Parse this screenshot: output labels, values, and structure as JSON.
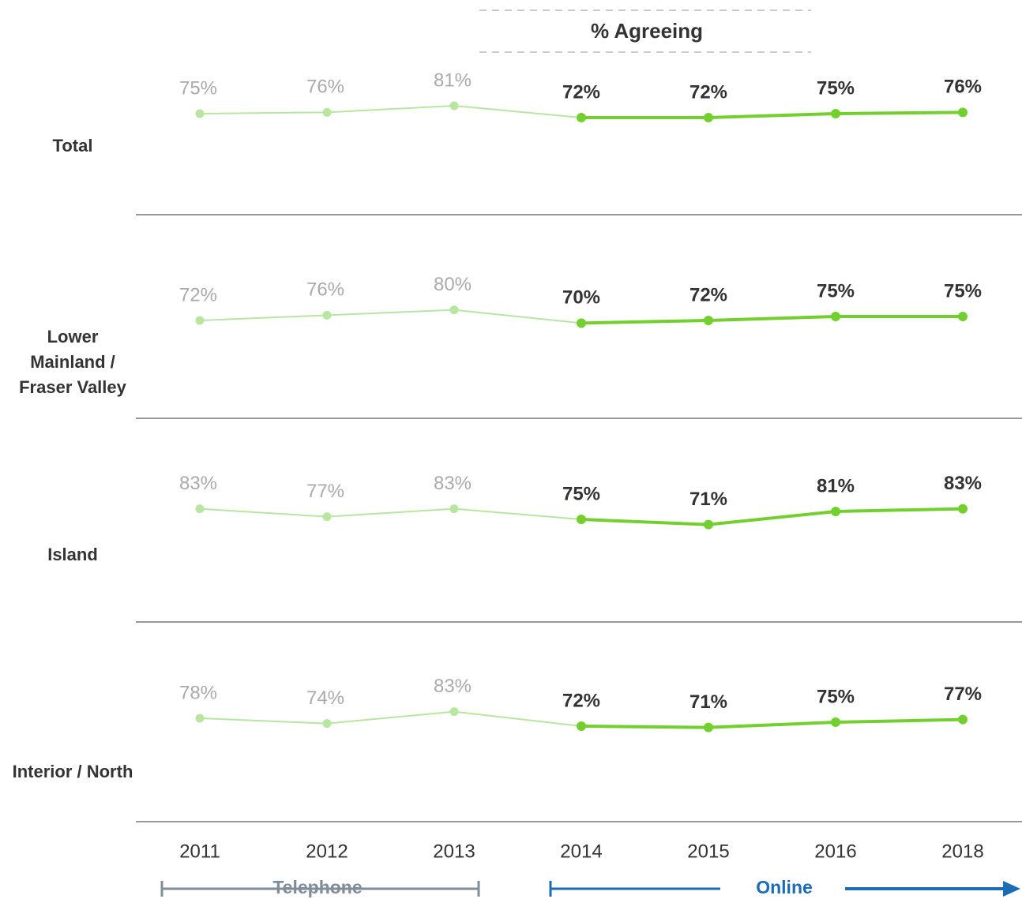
{
  "chart_data": {
    "type": "line",
    "title": "% Agreeing",
    "categories": [
      "2011",
      "2012",
      "2013",
      "2014",
      "2015",
      "2016",
      "2018"
    ],
    "modes": [
      {
        "label": "Telephone",
        "color": "#b8e6a0",
        "label_color": "#7f8e99"
      },
      {
        "label": "Online",
        "color": "#72cf2e",
        "label_color": "#1a6db5"
      }
    ],
    "series": [
      {
        "name": "Total",
        "values": [
          [
            75,
            76,
            81
          ],
          [
            72,
            72,
            75,
            76
          ]
        ],
        "value_labels": [
          [
            "75%",
            "76%",
            "81%"
          ],
          [
            "72%",
            "72%",
            "75%",
            "76%"
          ]
        ]
      },
      {
        "name": "Lower Mainland / Fraser Valley",
        "values": [
          [
            72,
            76,
            80
          ],
          [
            70,
            72,
            75,
            75
          ]
        ],
        "value_labels": [
          [
            "72%",
            "76%",
            "80%"
          ],
          [
            "70%",
            "72%",
            "75%",
            "75%"
          ]
        ]
      },
      {
        "name": "Island",
        "values": [
          [
            83,
            77,
            83
          ],
          [
            75,
            71,
            81,
            83
          ]
        ],
        "value_labels": [
          [
            "83%",
            "77%",
            "83%"
          ],
          [
            "75%",
            "71%",
            "81%",
            "83%"
          ]
        ]
      },
      {
        "name": "Interior / North",
        "values": [
          [
            78,
            74,
            83
          ],
          [
            72,
            71,
            75,
            77
          ]
        ],
        "value_labels": [
          [
            "78%",
            "74%",
            "83%"
          ],
          [
            "72%",
            "71%",
            "75%",
            "77%"
          ]
        ]
      }
    ]
  }
}
